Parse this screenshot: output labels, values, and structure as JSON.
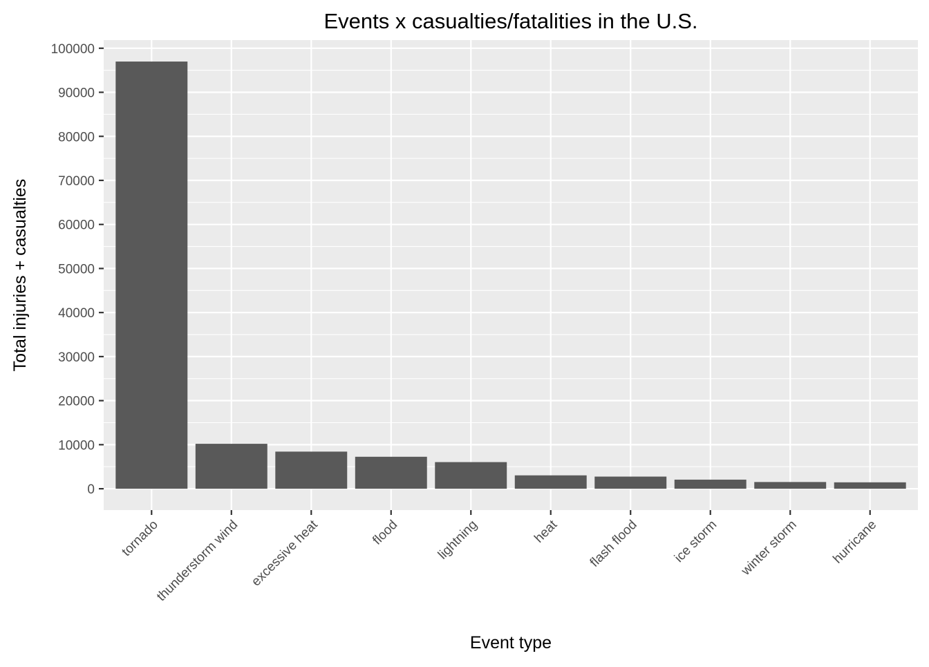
{
  "chart_data": {
    "type": "bar",
    "title": "Events x casualties/fatalities in the U.S.",
    "xlabel": "Event type",
    "ylabel": "Total injuries + casualties",
    "categories": [
      "tornado",
      "thunderstorm wind",
      "excessive heat",
      "flood",
      "lightning",
      "heat",
      "flash flood",
      "ice storm",
      "winter storm",
      "hurricane"
    ],
    "values": [
      96979,
      10200,
      8428,
      7259,
      6046,
      3037,
      2755,
      2064,
      1527,
      1453
    ],
    "ylim": [
      -4850,
      101850
    ],
    "yticks": [
      0,
      10000,
      20000,
      30000,
      40000,
      50000,
      60000,
      70000,
      80000,
      90000,
      100000
    ],
    "ytick_labels": [
      "0",
      "10000",
      "20000",
      "30000",
      "40000",
      "50000",
      "60000",
      "70000",
      "80000",
      "90000",
      "100000"
    ],
    "grid": true,
    "legend": "none",
    "colors": {
      "bar": "#595959",
      "panel": "#ebebeb",
      "gridline": "#ffffff",
      "tick_text": "#4d4d4d",
      "tick_mark": "#333333"
    }
  }
}
